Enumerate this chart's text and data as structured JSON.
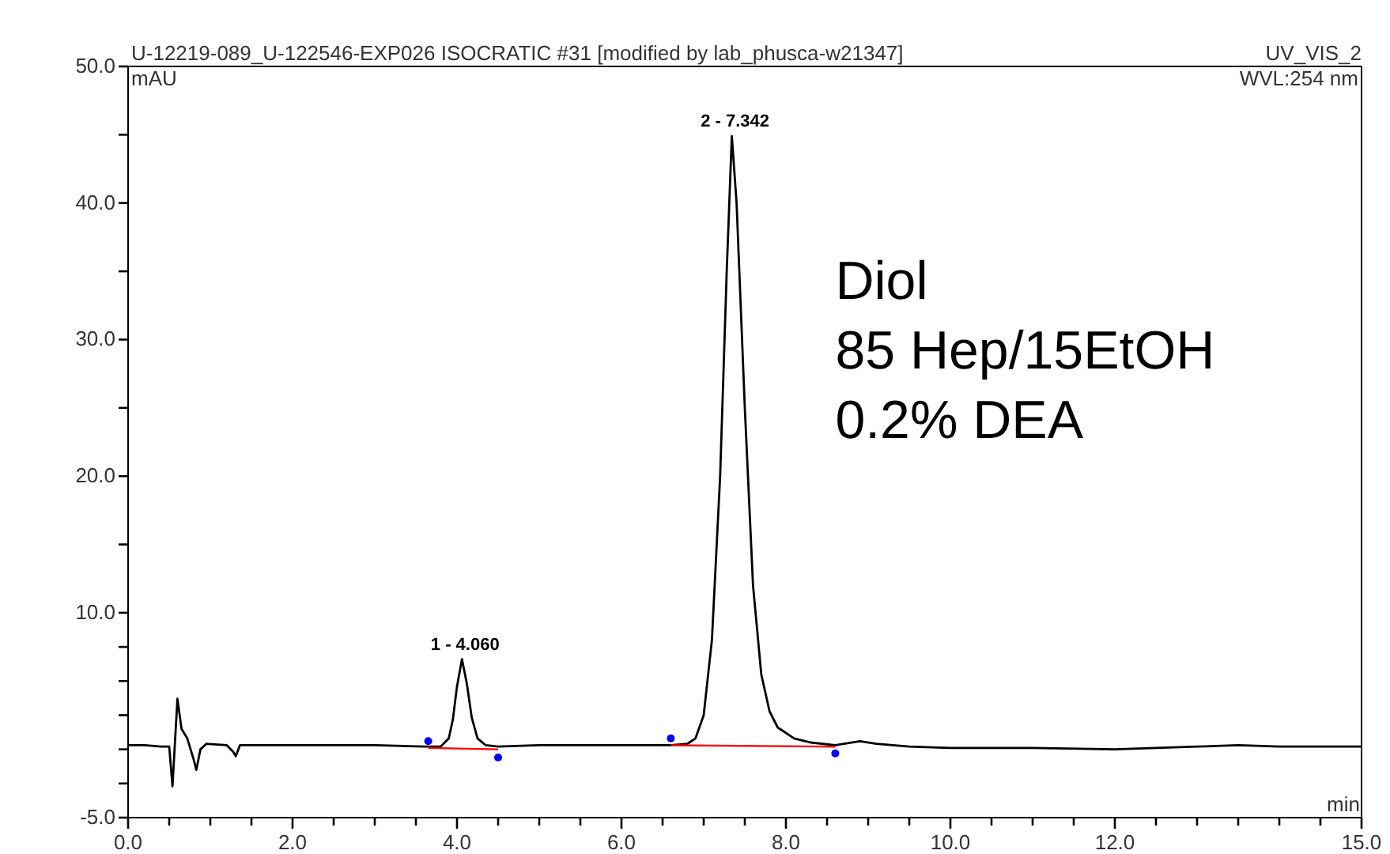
{
  "chart_data": {
    "type": "line",
    "title": "U-12219-089_U-122546-EXP026 ISOCRATIC #31 [modified by lab_phusca-w21347]",
    "subtitle": "UV_VIS_2",
    "xlabel": "min",
    "ylabel": "mAU",
    "xlim": [
      0,
      15
    ],
    "ylim": [
      -5,
      50
    ],
    "xticks": [
      {
        "value": 0,
        "label": "0.0"
      },
      {
        "value": 0.5,
        "label": null
      },
      {
        "value": 1,
        "label": null
      },
      {
        "value": 1.5,
        "label": null
      },
      {
        "value": 2,
        "label": "2.0"
      },
      {
        "value": 2.5,
        "label": null
      },
      {
        "value": 3,
        "label": null
      },
      {
        "value": 3.5,
        "label": null
      },
      {
        "value": 4,
        "label": "4.0"
      },
      {
        "value": 4.5,
        "label": null
      },
      {
        "value": 5,
        "label": null
      },
      {
        "value": 5.5,
        "label": null
      },
      {
        "value": 6,
        "label": "6.0"
      },
      {
        "value": 6.5,
        "label": null
      },
      {
        "value": 7,
        "label": null
      },
      {
        "value": 7.5,
        "label": null
      },
      {
        "value": 8,
        "label": "8.0"
      },
      {
        "value": 8.5,
        "label": null
      },
      {
        "value": 9,
        "label": null
      },
      {
        "value": 9.5,
        "label": null
      },
      {
        "value": 10,
        "label": "10.0"
      },
      {
        "value": 10.5,
        "label": null
      },
      {
        "value": 11,
        "label": null
      },
      {
        "value": 11.5,
        "label": null
      },
      {
        "value": 12,
        "label": "12.0"
      },
      {
        "value": 12.5,
        "label": null
      },
      {
        "value": 13,
        "label": null
      },
      {
        "value": 13.5,
        "label": null
      },
      {
        "value": 14,
        "label": null
      },
      {
        "value": 14.5,
        "label": null
      },
      {
        "value": 15,
        "label": "15.0"
      }
    ],
    "yticks": [
      {
        "value": -5,
        "label": "-5.0"
      },
      {
        "value": -2.5,
        "label": null
      },
      {
        "value": 0,
        "label": null
      },
      {
        "value": 2.5,
        "label": null
      },
      {
        "value": 5,
        "label": null
      },
      {
        "value": 7.5,
        "label": null
      },
      {
        "value": 10,
        "label": "10.0"
      },
      {
        "value": 15,
        "label": null
      },
      {
        "value": 20,
        "label": "20.0"
      },
      {
        "value": 25,
        "label": null
      },
      {
        "value": 30,
        "label": "30.0"
      },
      {
        "value": 35,
        "label": null
      },
      {
        "value": 40,
        "label": "40.0"
      },
      {
        "value": 45,
        "label": null
      },
      {
        "value": 50,
        "label": "50.0"
      }
    ],
    "series": [
      {
        "type": "line",
        "color": "#000000",
        "x": [
          0,
          0.2,
          0.4,
          0.5,
          0.54,
          0.57,
          0.6,
          0.65,
          0.72,
          0.8,
          0.83,
          0.88,
          0.95,
          1.2,
          1.28,
          1.31,
          1.36,
          2,
          3,
          3.6,
          3.8,
          3.9,
          3.95,
          4,
          4.06,
          4.12,
          4.18,
          4.25,
          4.35,
          4.5,
          5,
          6,
          6.6,
          6.8,
          6.9,
          7,
          7.1,
          7.2,
          7.28,
          7.342,
          7.4,
          7.5,
          7.6,
          7.7,
          7.8,
          7.9,
          8.1,
          8.3,
          8.6,
          8.9,
          9.1,
          9.5,
          10,
          11,
          12,
          13,
          13.5,
          14,
          14.5,
          15
        ],
        "values": [
          0.3,
          0.3,
          0.2,
          0.2,
          -2.7,
          0.5,
          3.7,
          1.5,
          0.8,
          -0.8,
          -1.5,
          0,
          0.4,
          0.3,
          -0.2,
          -0.5,
          0.3,
          0.3,
          0.3,
          0.2,
          0.2,
          0.8,
          2.2,
          4.6,
          6.6,
          4.8,
          2.3,
          0.8,
          0.3,
          0.2,
          0.3,
          0.3,
          0.3,
          0.4,
          0.8,
          2.5,
          8,
          20,
          35,
          44.9,
          40,
          25,
          12,
          5.5,
          2.8,
          1.6,
          0.8,
          0.5,
          0.3,
          0.6,
          0.4,
          0.2,
          0.1,
          0.1,
          0,
          0.2,
          0.3,
          0.2,
          0.2,
          0.2
        ]
      },
      {
        "type": "line",
        "color": "#ff0000",
        "x": [
          3.65,
          4.5
        ],
        "values": [
          0.1,
          0
        ]
      },
      {
        "type": "line",
        "color": "#ff0000",
        "x": [
          6.6,
          8.6
        ],
        "values": [
          0.3,
          0.2
        ]
      },
      {
        "type": "scatter",
        "color": "#0000ff",
        "x": [
          3.65,
          4.5,
          6.6,
          8.6
        ],
        "values": [
          0.6,
          -0.6,
          0.8,
          -0.3
        ]
      }
    ],
    "annotations": [
      {
        "text": "1 - 4.060",
        "x": 4.06,
        "y": 6.6
      },
      {
        "text": "2 - 7.342",
        "x": 7.342,
        "y": 44.9
      },
      "WVL:254 nm",
      "Diol\n85 Hep/15EtOH\n0.2% DEA"
    ]
  }
}
